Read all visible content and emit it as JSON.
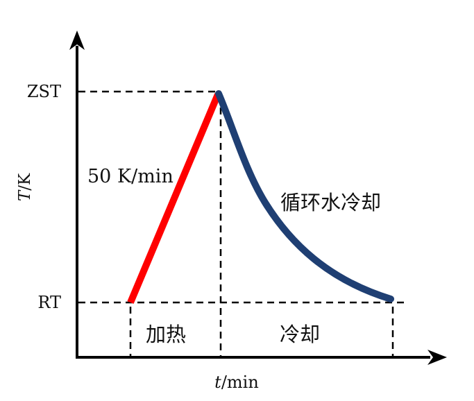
{
  "axes": {
    "y_label_italic": "T",
    "y_label_rest": "/K",
    "x_label_italic": "t",
    "x_label_rest": "/min"
  },
  "levels": {
    "top": "ZST",
    "bottom": "RT"
  },
  "annotations": {
    "heating_rate": "50 K/min",
    "cooling_method": "循环水冷却"
  },
  "phases": {
    "heating": "加热",
    "cooling": "冷却"
  },
  "colors": {
    "heating_line": "#ff0000",
    "cooling_line": "#1f3f73",
    "axis": "#000000"
  }
}
